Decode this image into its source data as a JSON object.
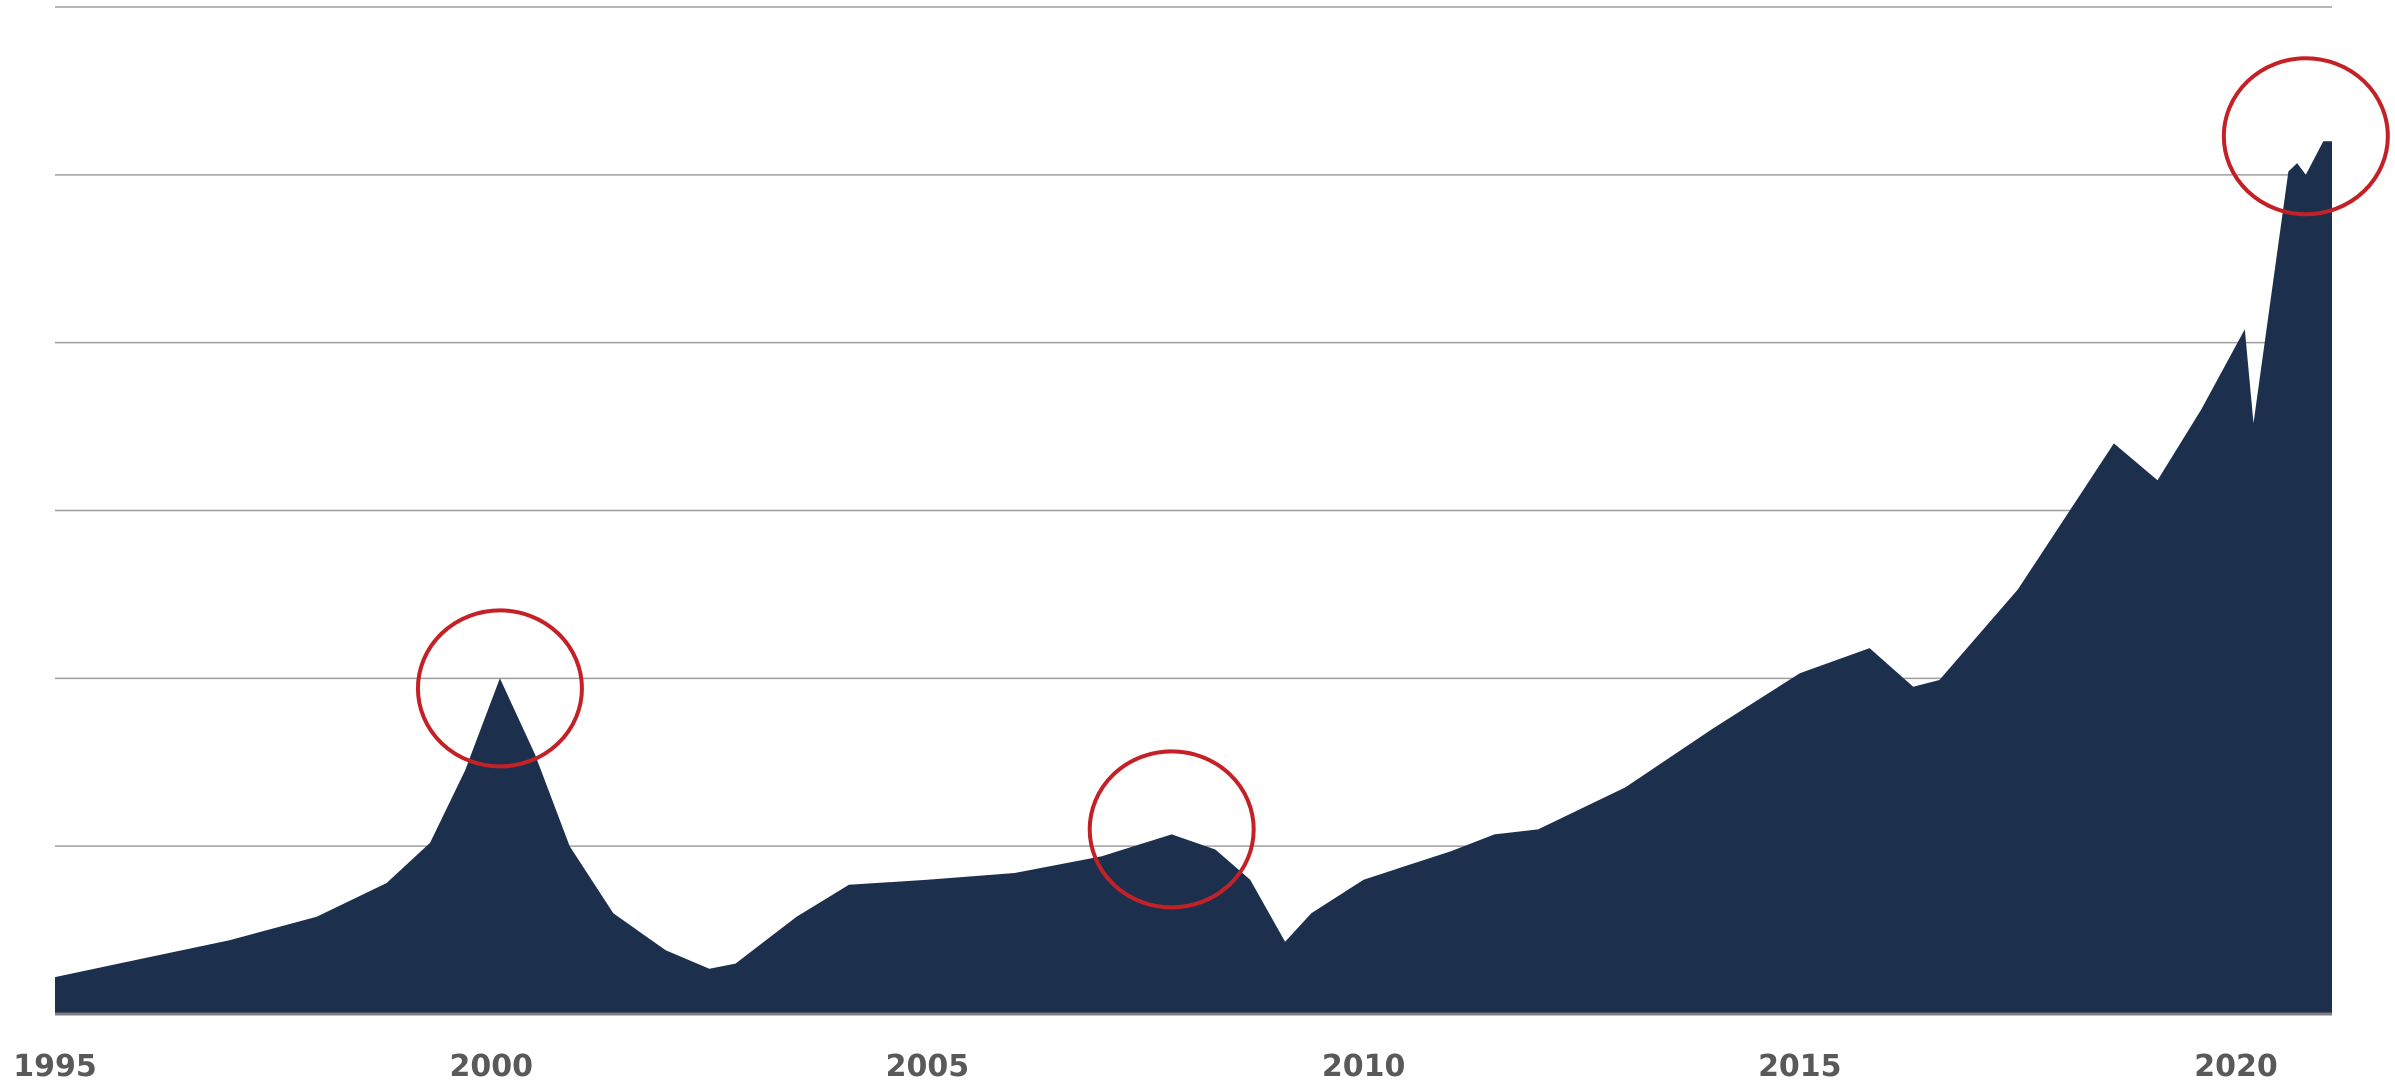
{
  "chart_data": {
    "type": "area",
    "title": "",
    "xlabel": "",
    "ylabel": "",
    "x_ticks": [
      "1995",
      "2000",
      "2005",
      "2010",
      "2015",
      "2020"
    ],
    "xlim": [
      1995,
      2021.1
    ],
    "ylim": [
      0,
      6
    ],
    "y_gridlines": [
      1,
      2,
      3,
      4,
      5,
      6
    ],
    "y_tick_labels_shown": false,
    "grid": true,
    "legend": "none",
    "fill_color": "#1c2f4d",
    "highlight_color": "#c42127",
    "series": [
      {
        "points": [
          [
            1995.0,
            0.22
          ],
          [
            1996.0,
            0.33
          ],
          [
            1997.0,
            0.44
          ],
          [
            1998.0,
            0.58
          ],
          [
            1998.8,
            0.78
          ],
          [
            1999.3,
            1.02
          ],
          [
            1999.7,
            1.45
          ],
          [
            2000.1,
            2.0
          ],
          [
            2000.5,
            1.55
          ],
          [
            2000.9,
            1.0
          ],
          [
            2001.4,
            0.6
          ],
          [
            2002.0,
            0.38
          ],
          [
            2002.5,
            0.27
          ],
          [
            2002.8,
            0.3
          ],
          [
            2003.5,
            0.58
          ],
          [
            2004.1,
            0.77
          ],
          [
            2005.0,
            0.8
          ],
          [
            2006.0,
            0.84
          ],
          [
            2007.0,
            0.94
          ],
          [
            2007.8,
            1.07
          ],
          [
            2008.3,
            0.98
          ],
          [
            2008.7,
            0.8
          ],
          [
            2009.1,
            0.43
          ],
          [
            2009.4,
            0.6
          ],
          [
            2010.0,
            0.8
          ],
          [
            2011.0,
            0.97
          ],
          [
            2011.5,
            1.07
          ],
          [
            2012.0,
            1.1
          ],
          [
            2013.0,
            1.35
          ],
          [
            2014.0,
            1.7
          ],
          [
            2015.0,
            2.03
          ],
          [
            2015.8,
            2.18
          ],
          [
            2016.3,
            1.95
          ],
          [
            2016.6,
            1.99
          ],
          [
            2017.5,
            2.53
          ],
          [
            2018.6,
            3.4
          ],
          [
            2019.1,
            3.18
          ],
          [
            2019.6,
            3.6
          ],
          [
            2020.1,
            4.08
          ],
          [
            2020.2,
            3.52
          ],
          [
            2020.6,
            5.02
          ],
          [
            2020.7,
            5.07
          ],
          [
            2020.8,
            5.0
          ],
          [
            2021.0,
            5.2
          ],
          [
            2021.1,
            5.2
          ]
        ]
      }
    ],
    "highlights": [
      {
        "x": 2000.1,
        "y": 1.94
      },
      {
        "x": 2007.8,
        "y": 1.1
      },
      {
        "x": 2020.8,
        "y": 5.23
      }
    ]
  }
}
